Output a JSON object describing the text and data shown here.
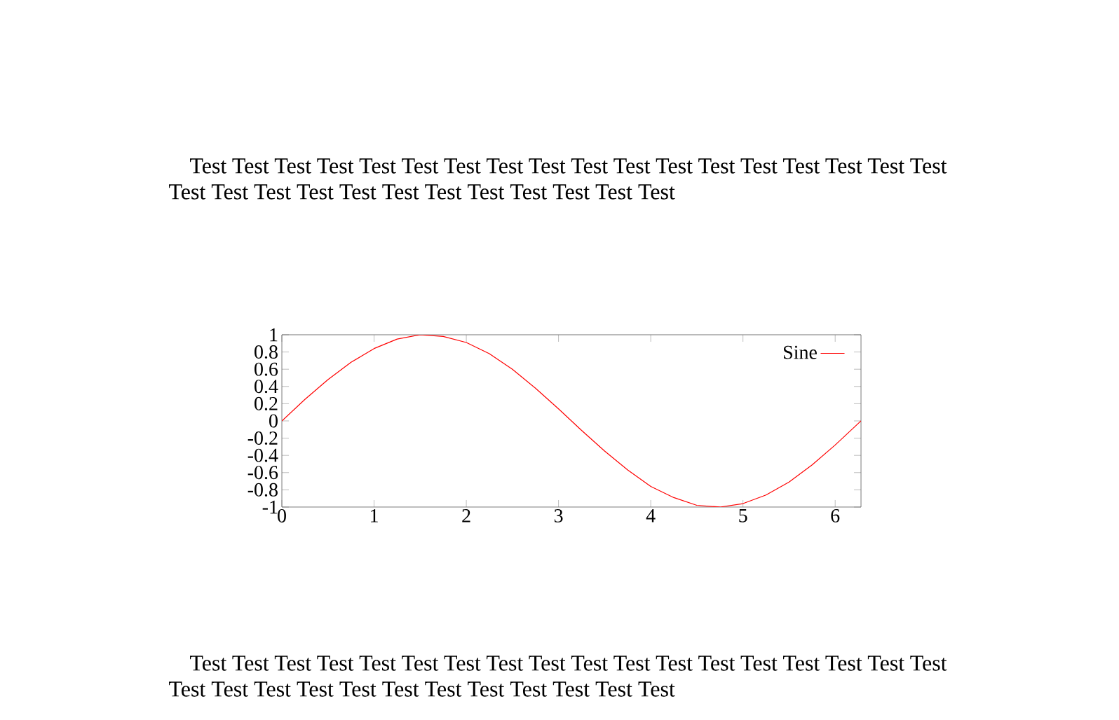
{
  "chart_data": {
    "type": "line",
    "annotations": [
      "Test Test Test Test Test Test Test Test Test Test Test Test Test Test Test Test Test Test Test Test Test Test Test Test Test Test Test Test Test Test",
      "Test Test Test Test Test Test Test Test Test Test Test Test Test Test Test Test Test Test Test Test Test Test Test Test Test Test Test Test Test Test"
    ],
    "x": [
      0,
      0.25,
      0.5,
      0.75,
      1,
      1.25,
      1.5,
      1.75,
      2,
      2.25,
      2.5,
      2.75,
      3,
      3.25,
      3.5,
      3.75,
      4,
      4.25,
      4.5,
      4.75,
      5,
      5.25,
      5.5,
      5.75,
      6,
      6.25,
      6.28
    ],
    "series": [
      {
        "name": "Sine",
        "color": "#ff0000",
        "values": [
          0,
          0.25,
          0.48,
          0.68,
          0.84,
          0.95,
          1.0,
          0.98,
          0.91,
          0.78,
          0.6,
          0.38,
          0.14,
          -0.11,
          -0.35,
          -0.57,
          -0.76,
          -0.89,
          -0.98,
          -1.0,
          -0.96,
          -0.86,
          -0.71,
          -0.51,
          -0.28,
          -0.03,
          0
        ]
      }
    ],
    "xlim": [
      0,
      6.28
    ],
    "ylim": [
      -1,
      1
    ],
    "xticks": [
      0,
      1,
      2,
      3,
      4,
      5,
      6
    ],
    "yticks": [
      -1,
      -0.8,
      -0.6,
      -0.4,
      -0.2,
      0,
      0.2,
      0.4,
      0.6,
      0.8,
      1
    ],
    "legend": "top right",
    "marker": "none",
    "line_style": "solid",
    "grid": false
  }
}
